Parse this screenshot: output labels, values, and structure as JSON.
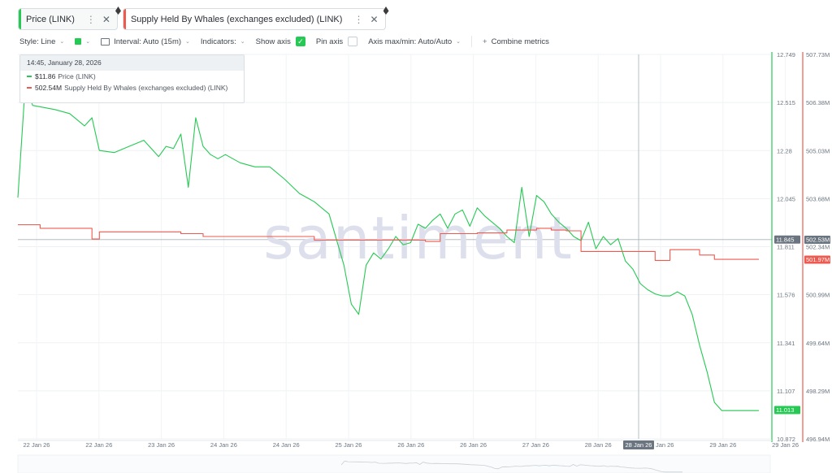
{
  "tabs": [
    {
      "label": "Price (LINK)",
      "color": "#26c953"
    },
    {
      "label": "Supply Held By Whales (exchanges excluded) (LINK)",
      "color": "#ee5a4f"
    }
  ],
  "toolbar": {
    "style_label": "Style: Line",
    "interval_label": "Interval: Auto (15m)",
    "indicators_label": "Indicators:",
    "show_axis_label": "Show axis",
    "show_axis_checked": true,
    "pin_axis_label": "Pin axis",
    "pin_axis_checked": false,
    "axis_maxmin_label": "Axis max/min: Auto/Auto",
    "combine_label": "Combine metrics"
  },
  "tooltip": {
    "date": "14:45, January 28, 2026",
    "rows": [
      {
        "value": "$11.86",
        "label": "Price (LINK)",
        "color": "#26c953"
      },
      {
        "value": "502.54M",
        "label": "Supply Held By Whales (exchanges excluded) (LINK)",
        "color": "#ee5a4f"
      }
    ]
  },
  "watermark": "santiment",
  "chart_data": {
    "type": "line",
    "x_labels": [
      "22 Jan 26",
      "22 Jan 26",
      "23 Jan 26",
      "24 Jan 26",
      "24 Jan 26",
      "25 Jan 26",
      "26 Jan 26",
      "26 Jan 26",
      "27 Jan 26",
      "28 Jan 26",
      "28 Jan 26",
      "29 Jan 26",
      "29 Jan 26"
    ],
    "cursor_x_label": "28 Jan 26",
    "y_left_ticks": [
      "12.749",
      "12.515",
      "12.28",
      "12.045",
      "11.811",
      "11.576",
      "11.341",
      "11.107",
      "10.872"
    ],
    "y_left_range": [
      10.872,
      12.749
    ],
    "y_right_ticks": [
      "507.73M",
      "506.38M",
      "505.03M",
      "503.68M",
      "502.34M",
      "500.99M",
      "499.64M",
      "498.29M",
      "496.94M"
    ],
    "y_right_range": [
      496.94,
      507.73
    ],
    "badges": [
      {
        "axis": "left",
        "text": "11.845",
        "value": 11.845,
        "color": "#6b7580"
      },
      {
        "axis": "left",
        "text": "11.013",
        "value": 11.013,
        "color": "#26c953"
      },
      {
        "axis": "right",
        "text": "502.53M",
        "value": 502.53,
        "color": "#6b7580"
      },
      {
        "axis": "right",
        "text": "501.97M",
        "value": 501.97,
        "color": "#ee5a4f"
      }
    ],
    "series": [
      {
        "name": "Price (LINK)",
        "axis": "left",
        "color": "#26c953",
        "x": [
          0,
          0.01,
          0.02,
          0.05,
          0.07,
          0.09,
          0.1,
          0.11,
          0.13,
          0.15,
          0.17,
          0.19,
          0.2,
          0.21,
          0.22,
          0.23,
          0.24,
          0.25,
          0.26,
          0.27,
          0.28,
          0.3,
          0.32,
          0.34,
          0.36,
          0.38,
          0.4,
          0.42,
          0.44,
          0.45,
          0.46,
          0.47,
          0.48,
          0.49,
          0.5,
          0.51,
          0.52,
          0.53,
          0.54,
          0.55,
          0.56,
          0.57,
          0.58,
          0.59,
          0.6,
          0.61,
          0.62,
          0.63,
          0.64,
          0.65,
          0.66,
          0.67,
          0.68,
          0.69,
          0.7,
          0.71,
          0.72,
          0.73,
          0.74,
          0.75,
          0.76,
          0.77,
          0.78,
          0.79,
          0.8,
          0.81,
          0.82,
          0.83,
          0.84,
          0.85,
          0.86,
          0.87,
          0.88,
          0.89,
          0.9,
          0.91,
          0.92,
          0.93,
          0.94,
          0.95,
          0.96,
          0.97,
          0.98,
          0.99,
          1.0
        ],
        "y": [
          12.05,
          12.6,
          12.5,
          12.48,
          12.46,
          12.4,
          12.44,
          12.28,
          12.27,
          12.3,
          12.33,
          12.25,
          12.3,
          12.29,
          12.36,
          12.1,
          12.44,
          12.3,
          12.26,
          12.24,
          12.26,
          12.22,
          12.2,
          12.2,
          12.14,
          12.07,
          12.03,
          11.97,
          11.72,
          11.53,
          11.48,
          11.72,
          11.78,
          11.75,
          11.8,
          11.86,
          11.82,
          11.83,
          11.92,
          11.9,
          11.94,
          11.97,
          11.9,
          11.97,
          11.99,
          11.91,
          12.0,
          11.96,
          11.93,
          11.9,
          11.86,
          11.83,
          12.1,
          11.86,
          12.06,
          12.03,
          11.97,
          11.93,
          11.9,
          11.86,
          11.84,
          11.93,
          11.8,
          11.86,
          11.82,
          11.85,
          11.74,
          11.7,
          11.63,
          11.6,
          11.58,
          11.57,
          11.57,
          11.59,
          11.57,
          11.48,
          11.33,
          11.2,
          11.05,
          11.01,
          11.01,
          11.01,
          11.01,
          11.01,
          11.01
        ]
      },
      {
        "name": "Supply Held By Whales (exchanges excluded) (LINK)",
        "axis": "right",
        "color": "#ee5a4f",
        "x": [
          0,
          0.02,
          0.03,
          0.1,
          0.11,
          0.14,
          0.2,
          0.22,
          0.25,
          0.4,
          0.55,
          0.57,
          0.6,
          0.62,
          0.66,
          0.7,
          0.72,
          0.74,
          0.76,
          0.8,
          0.82,
          0.84,
          0.86,
          0.88,
          0.9,
          0.92,
          0.94,
          0.96,
          0.98,
          1.0
        ],
        "y": [
          502.95,
          502.95,
          502.85,
          502.55,
          502.75,
          502.75,
          502.75,
          502.7,
          502.62,
          502.52,
          502.48,
          502.7,
          502.7,
          502.72,
          502.8,
          502.85,
          502.8,
          502.78,
          502.2,
          502.2,
          502.2,
          502.2,
          501.95,
          502.25,
          502.25,
          502.1,
          501.98,
          501.98,
          501.98,
          501.98
        ]
      }
    ]
  }
}
